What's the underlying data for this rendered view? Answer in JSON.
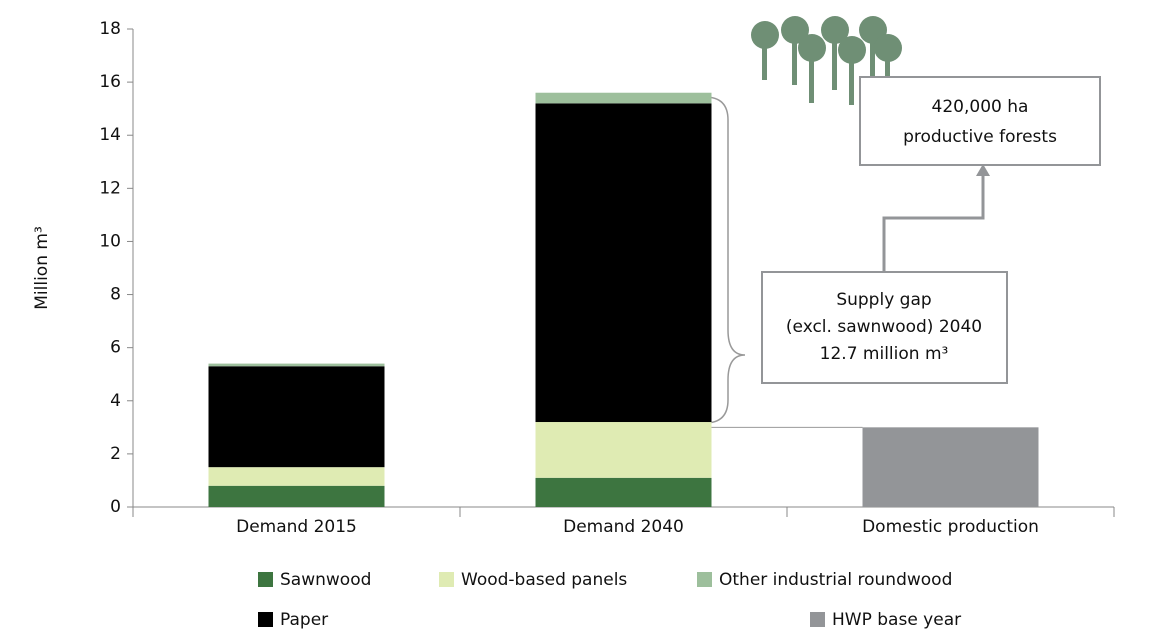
{
  "chart_data": {
    "type": "stacked_bar",
    "y_label": "Million m³",
    "categories": [
      "Demand 2015",
      "Demand 2040",
      "Domestic production"
    ],
    "series": [
      {
        "name": "Sawnwood",
        "color": "#3d7540",
        "values": [
          0.8,
          1.1,
          null
        ]
      },
      {
        "name": "Wood-based panels",
        "color": "#dfebb3",
        "values": [
          0.7,
          2.1,
          null
        ]
      },
      {
        "name": "Paper",
        "color": "#000000",
        "values": [
          3.8,
          12.0,
          null
        ]
      },
      {
        "name": "Other industrial roundwood",
        "color": "#9dbf9c",
        "values": [
          0.1,
          0.4,
          null
        ]
      },
      {
        "name": "HWP base year",
        "color": "#939598",
        "values": [
          null,
          null,
          3.0
        ]
      }
    ],
    "ylim": [
      0,
      18
    ],
    "yticks": [
      0,
      2,
      4,
      6,
      8,
      10,
      12,
      14,
      16,
      18
    ],
    "annotations": [
      {
        "lines": [
          "Supply gap",
          "(excl. sawnwood) 2040",
          "12.7 million m³"
        ]
      },
      {
        "lines": [
          "420,000 ha",
          "productive forests"
        ]
      }
    ]
  }
}
